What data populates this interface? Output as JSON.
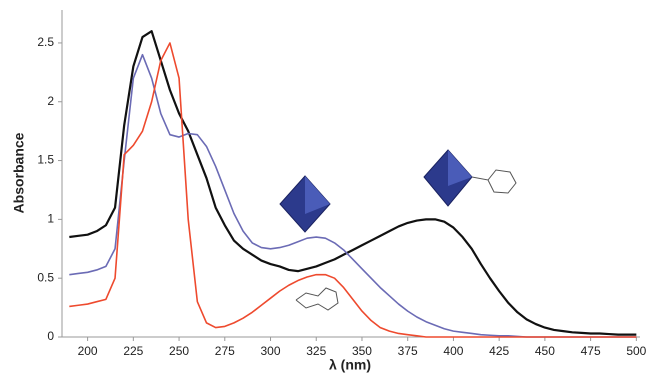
{
  "chart_data": {
    "type": "line",
    "ylabel": "Absorbance",
    "xlabel": "λ (nm)",
    "x": [
      190,
      195,
      200,
      205,
      210,
      215,
      220,
      225,
      230,
      235,
      240,
      245,
      250,
      255,
      260,
      265,
      270,
      275,
      280,
      285,
      290,
      295,
      300,
      305,
      310,
      315,
      320,
      325,
      330,
      335,
      340,
      345,
      350,
      355,
      360,
      365,
      370,
      375,
      380,
      385,
      390,
      395,
      400,
      405,
      410,
      415,
      420,
      425,
      430,
      435,
      440,
      445,
      450,
      455,
      460,
      465,
      470,
      475,
      480,
      485,
      490,
      495,
      500
    ],
    "series": [
      {
        "color": "#111111",
        "values": [
          0.85,
          0.86,
          0.87,
          0.9,
          0.95,
          1.1,
          1.8,
          2.3,
          2.55,
          2.6,
          2.35,
          2.1,
          1.9,
          1.75,
          1.55,
          1.35,
          1.1,
          0.95,
          0.82,
          0.75,
          0.7,
          0.65,
          0.62,
          0.6,
          0.57,
          0.56,
          0.58,
          0.6,
          0.63,
          0.66,
          0.7,
          0.74,
          0.78,
          0.82,
          0.86,
          0.9,
          0.94,
          0.97,
          0.99,
          1.0,
          1.0,
          0.98,
          0.93,
          0.85,
          0.75,
          0.62,
          0.5,
          0.39,
          0.29,
          0.21,
          0.15,
          0.11,
          0.08,
          0.06,
          0.05,
          0.04,
          0.035,
          0.03,
          0.03,
          0.025,
          0.02,
          0.02,
          0.02
        ]
      },
      {
        "color": "#6b6bb5",
        "values": [
          0.53,
          0.54,
          0.55,
          0.57,
          0.6,
          0.75,
          1.5,
          2.2,
          2.4,
          2.2,
          1.9,
          1.72,
          1.7,
          1.73,
          1.72,
          1.62,
          1.45,
          1.25,
          1.05,
          0.9,
          0.8,
          0.76,
          0.75,
          0.76,
          0.78,
          0.81,
          0.84,
          0.85,
          0.84,
          0.8,
          0.74,
          0.66,
          0.58,
          0.5,
          0.42,
          0.35,
          0.28,
          0.22,
          0.17,
          0.13,
          0.1,
          0.07,
          0.05,
          0.04,
          0.03,
          0.02,
          0.015,
          0.01,
          0.01,
          0.005,
          0,
          0,
          0,
          0,
          0,
          0,
          0,
          0,
          0,
          0,
          0,
          0,
          0
        ]
      },
      {
        "color": "#ee4a2e",
        "values": [
          0.26,
          0.27,
          0.28,
          0.3,
          0.32,
          0.5,
          1.55,
          1.63,
          1.75,
          2.0,
          2.35,
          2.5,
          2.2,
          1.0,
          0.3,
          0.12,
          0.08,
          0.09,
          0.12,
          0.16,
          0.21,
          0.27,
          0.33,
          0.39,
          0.44,
          0.48,
          0.51,
          0.53,
          0.53,
          0.5,
          0.42,
          0.32,
          0.22,
          0.14,
          0.08,
          0.05,
          0.03,
          0.02,
          0.01,
          0,
          0,
          0,
          0,
          0,
          0,
          0,
          0,
          0,
          0,
          0,
          0,
          0,
          0,
          0,
          0,
          0,
          0,
          0,
          0,
          0,
          0,
          0,
          0
        ]
      }
    ],
    "xlim": [
      186,
      502
    ],
    "xticks": [
      200,
      225,
      250,
      275,
      300,
      325,
      350,
      375,
      400,
      425,
      450,
      475,
      500
    ],
    "ylim": [
      0,
      2.78
    ],
    "yticks": [
      0,
      0.5,
      1,
      1.5,
      2,
      2.5
    ],
    "grid": false
  }
}
